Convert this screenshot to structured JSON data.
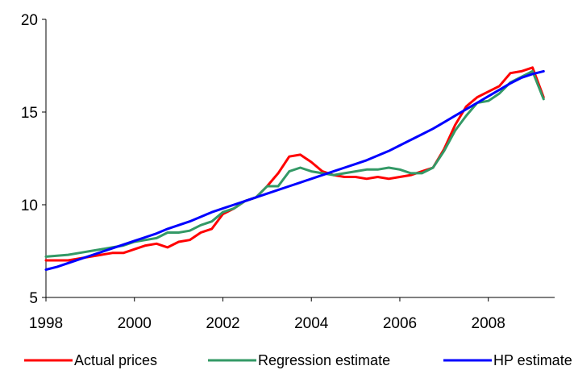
{
  "chart_data": {
    "type": "line",
    "title": "",
    "xlabel": "",
    "ylabel": "",
    "xlim": [
      1998,
      2009.5
    ],
    "ylim": [
      5,
      20
    ],
    "x_ticks": [
      1998,
      2000,
      2002,
      2004,
      2006,
      2008
    ],
    "x_tick_labels": [
      "1998",
      "2000",
      "2002",
      "2004",
      "2006",
      "2008"
    ],
    "y_ticks": [
      5,
      10,
      15,
      20
    ],
    "y_tick_labels": [
      "5",
      "10",
      "15",
      "20"
    ],
    "grid": false,
    "legend": "bottom",
    "x": [
      1998.0,
      1998.25,
      1998.5,
      1998.75,
      1999.0,
      1999.25,
      1999.5,
      1999.75,
      2000.0,
      2000.25,
      2000.5,
      2000.75,
      2001.0,
      2001.25,
      2001.5,
      2001.75,
      2002.0,
      2002.25,
      2002.5,
      2002.75,
      2003.0,
      2003.25,
      2003.5,
      2003.75,
      2004.0,
      2004.25,
      2004.5,
      2004.75,
      2005.0,
      2005.25,
      2005.5,
      2005.75,
      2006.0,
      2006.25,
      2006.5,
      2006.75,
      2007.0,
      2007.25,
      2007.5,
      2007.75,
      2008.0,
      2008.25,
      2008.5,
      2008.75,
      2009.0,
      2009.25
    ],
    "series": [
      {
        "name": "Actual prices",
        "color": "#ff0000",
        "values": [
          7.0,
          7.0,
          7.0,
          7.1,
          7.2,
          7.3,
          7.4,
          7.4,
          7.6,
          7.8,
          7.9,
          7.7,
          8.0,
          8.1,
          8.5,
          8.7,
          9.5,
          9.8,
          10.2,
          10.4,
          11.0,
          11.7,
          12.6,
          12.7,
          12.3,
          11.8,
          11.6,
          11.5,
          11.5,
          11.4,
          11.5,
          11.4,
          11.5,
          11.6,
          11.8,
          12.0,
          13.0,
          14.3,
          15.3,
          15.8,
          16.1,
          16.4,
          17.1,
          17.2,
          17.4,
          15.8
        ]
      },
      {
        "name": "Regression estimate",
        "color": "#339966",
        "values": [
          7.2,
          7.25,
          7.3,
          7.4,
          7.5,
          7.6,
          7.7,
          7.8,
          8.0,
          8.1,
          8.2,
          8.5,
          8.5,
          8.6,
          8.9,
          9.1,
          9.6,
          9.8,
          10.2,
          10.4,
          11.0,
          11.0,
          11.8,
          12.0,
          11.8,
          11.7,
          11.6,
          11.7,
          11.8,
          11.9,
          11.9,
          12.0,
          11.9,
          11.7,
          11.7,
          12.0,
          12.9,
          14.0,
          14.8,
          15.5,
          15.6,
          16.0,
          16.6,
          16.9,
          17.2,
          15.7
        ]
      },
      {
        "name": "HP estimate",
        "color": "#0000ff",
        "values": [
          6.5,
          6.65,
          6.85,
          7.05,
          7.25,
          7.45,
          7.65,
          7.85,
          8.05,
          8.25,
          8.45,
          8.7,
          8.9,
          9.1,
          9.35,
          9.6,
          9.8,
          10.0,
          10.2,
          10.4,
          10.6,
          10.8,
          11.0,
          11.2,
          11.4,
          11.6,
          11.8,
          12.0,
          12.2,
          12.4,
          12.65,
          12.9,
          13.2,
          13.5,
          13.8,
          14.1,
          14.45,
          14.8,
          15.15,
          15.5,
          15.85,
          16.2,
          16.55,
          16.85,
          17.05,
          17.2
        ]
      }
    ]
  }
}
